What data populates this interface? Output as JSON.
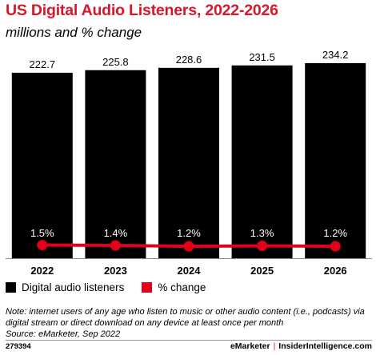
{
  "chart_data": {
    "type": "bar",
    "title": "US Digital Audio Listeners, 2022-2026",
    "subtitle": "millions and % change",
    "categories": [
      "2022",
      "2023",
      "2024",
      "2025",
      "2026"
    ],
    "series": [
      {
        "name": "Digital audio listeners",
        "type": "bar",
        "values": [
          222.7,
          225.8,
          228.6,
          231.5,
          234.2
        ],
        "labels": [
          "222.7",
          "225.8",
          "228.6",
          "231.5",
          "234.2"
        ],
        "color": "#000000"
      },
      {
        "name": "% change",
        "type": "line",
        "values": [
          1.5,
          1.4,
          1.2,
          1.3,
          1.2
        ],
        "labels": [
          "1.5%",
          "1.4%",
          "1.2%",
          "1.3%",
          "1.2%"
        ],
        "color": "#e4001b"
      }
    ],
    "legend": "bottom-left",
    "grid": false
  },
  "note": "Note: internet users of any age who listen to music or other audio content (i.e., podcasts) via digital stream or direct download on any device at least once per month",
  "source": "Source: eMarketer, Sep 2022",
  "footer": {
    "id": "279394",
    "brand_left": "eMarketer",
    "separator": "|",
    "brand_right": "InsiderIntelligence.com"
  },
  "colors": {
    "accent": "#d7182a",
    "bar": "#000000",
    "line": "#e4001b"
  }
}
